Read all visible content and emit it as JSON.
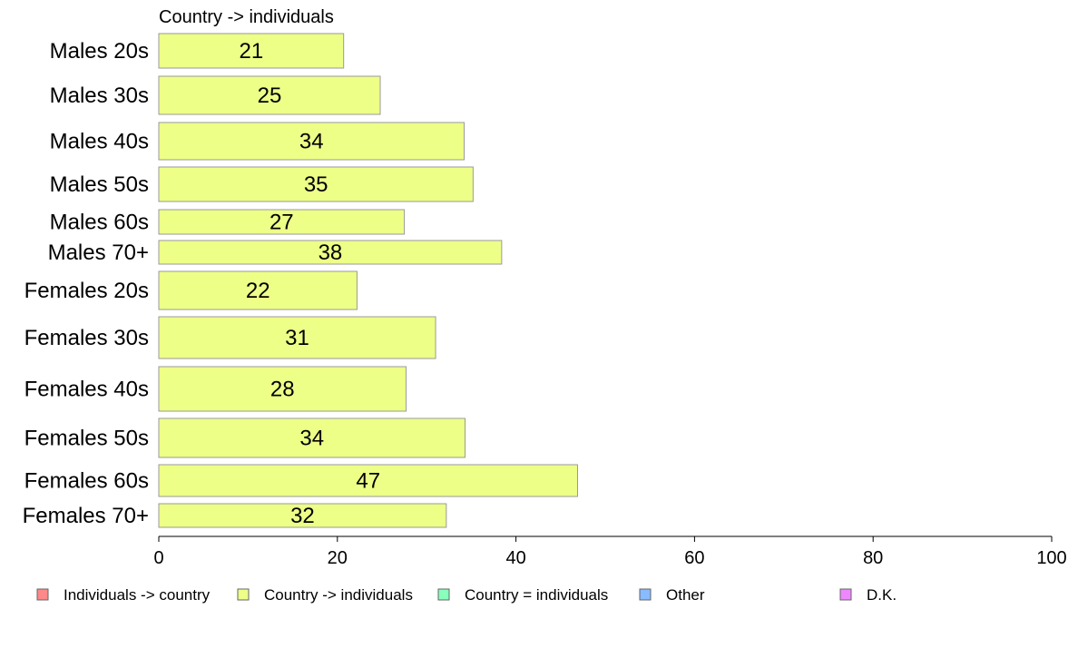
{
  "chart_data": {
    "type": "bar",
    "orientation": "horizontal",
    "title": "Country -> individuals",
    "categories": [
      "Males 20s",
      "Males 30s",
      "Males 40s",
      "Males 50s",
      "Males 60s",
      "Males 70+",
      "Females 20s",
      "Females 30s",
      "Females 40s",
      "Females 50s",
      "Females 60s",
      "Females 70+"
    ],
    "series": [
      {
        "name": "Country -> individuals",
        "color": "#eeff88",
        "values": [
          20.7,
          24.8,
          34.2,
          35.2,
          27.5,
          38.4,
          22.2,
          31.0,
          27.7,
          34.3,
          46.9,
          32.2
        ],
        "labels": [
          "21",
          "25",
          "34",
          "35",
          "27",
          "38",
          "22",
          "31",
          "28",
          "34",
          "47",
          "32"
        ]
      }
    ],
    "xlim": [
      0,
      100
    ],
    "xticks": [
      "0",
      "20",
      "40",
      "60",
      "80",
      "100"
    ],
    "xtick_values": [
      0,
      20,
      40,
      60,
      80,
      100
    ],
    "grid": false,
    "legend_placement": "bottom",
    "legend": [
      {
        "label": "Individuals -> country",
        "color": "#ff8888"
      },
      {
        "label": "Country -> individuals",
        "color": "#eeff88"
      },
      {
        "label": "Country = individuals",
        "color": "#88ffbb"
      },
      {
        "label": "Other",
        "color": "#88bbff"
      },
      {
        "label": "D.K.",
        "color": "#ee88ff"
      }
    ]
  }
}
